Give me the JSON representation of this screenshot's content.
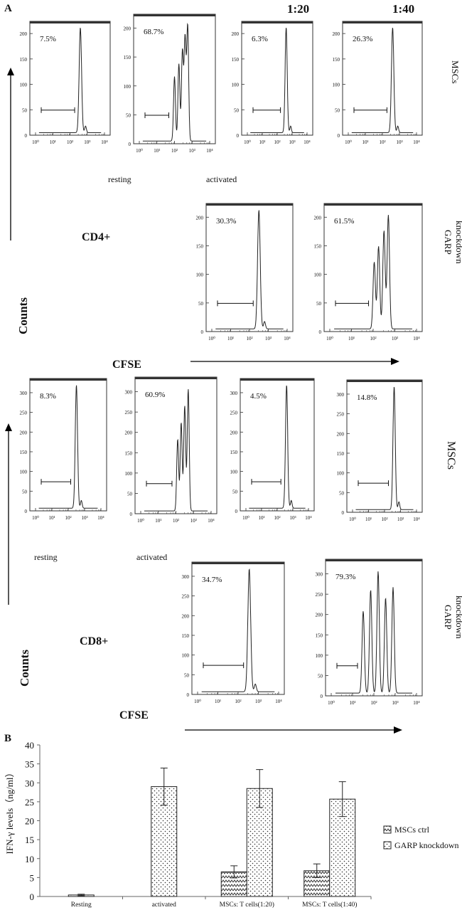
{
  "panel_labels": {
    "a": "A",
    "b": "B"
  },
  "ratio_headers": [
    "1:20",
    "1:40"
  ],
  "row_labels": {
    "mscs": "MSCs",
    "garp": [
      "GARP",
      "knockdown"
    ]
  },
  "section_labels": {
    "cd4": "CD4+",
    "cd8": "CD8+",
    "counts": "Counts",
    "cfse": "CFSE",
    "resting": "resting",
    "activated": "activated"
  },
  "chart_data": [
    {
      "type": "histogram",
      "group": "CD4+",
      "axis_label_y": "Counts",
      "axis_label_x": "CFSE",
      "x_ticks": [
        "10⁰",
        "10¹",
        "10²",
        "10³",
        "10⁴"
      ],
      "panels": [
        {
          "condition": "resting",
          "row": "MSCs",
          "percent": "7.5%",
          "yticks": [
            0,
            50,
            100,
            150,
            200
          ],
          "peaks": [
            2.6
          ]
        },
        {
          "condition": "activated",
          "row": "MSCs",
          "percent": "68.7%",
          "yticks": [
            0,
            50,
            100,
            150,
            200
          ],
          "peaks": [
            2.0,
            2.25,
            2.45,
            2.6,
            2.75
          ]
        },
        {
          "condition": "1:20",
          "row": "MSCs",
          "percent": "6.3%",
          "yticks": [
            0,
            50,
            100,
            150,
            200
          ],
          "peaks": [
            2.6
          ]
        },
        {
          "condition": "1:40",
          "row": "MSCs",
          "percent": "26.3%",
          "yticks": [
            0,
            50,
            100,
            150,
            200
          ],
          "peaks": [
            2.6
          ]
        },
        {
          "condition": "1:20",
          "row": "GARP knockdown",
          "percent": "30.3%",
          "yticks": [
            0,
            50,
            100,
            150,
            200
          ],
          "peaks": [
            2.5
          ]
        },
        {
          "condition": "1:40",
          "row": "GARP knockdown",
          "percent": "61.5%",
          "yticks": [
            0,
            50,
            100,
            150,
            200
          ],
          "peaks": [
            2.05,
            2.25,
            2.5,
            2.7
          ]
        }
      ]
    },
    {
      "type": "histogram",
      "group": "CD8+",
      "axis_label_y": "Counts",
      "axis_label_x": "CFSE",
      "x_ticks": [
        "10⁰",
        "10¹",
        "10²",
        "10³",
        "10⁴"
      ],
      "panels": [
        {
          "condition": "resting",
          "row": "MSCs",
          "percent": "8.3%",
          "yticks": [
            0,
            50,
            100,
            150,
            200,
            250,
            300
          ],
          "peaks": [
            2.5
          ]
        },
        {
          "condition": "activated",
          "row": "MSCs",
          "percent": "60.9%",
          "yticks": [
            0,
            50,
            100,
            150,
            200,
            250,
            300
          ],
          "peaks": [
            2.1,
            2.3,
            2.5,
            2.7
          ]
        },
        {
          "condition": "1:20",
          "row": "MSCs",
          "percent": "4.5%",
          "yticks": [
            0,
            50,
            100,
            150,
            200,
            250,
            300
          ],
          "peaks": [
            2.6
          ]
        },
        {
          "condition": "1:40",
          "row": "MSCs",
          "percent": "14.8%",
          "yticks": [
            0,
            50,
            100,
            150,
            200,
            250,
            300
          ],
          "peaks": [
            2.6
          ]
        },
        {
          "condition": "1:20",
          "row": "GARP knockdown",
          "percent": "34.7%",
          "yticks": [
            0,
            50,
            100,
            150,
            200,
            250,
            300
          ],
          "peaks": [
            2.55
          ]
        },
        {
          "condition": "1:40",
          "row": "GARP knockdown",
          "percent": "79.3%",
          "yticks": [
            0,
            50,
            100,
            150,
            200,
            250,
            300
          ],
          "peaks": [
            1.5,
            1.85,
            2.2,
            2.55,
            2.9
          ]
        }
      ]
    },
    {
      "type": "bar",
      "ylabel": "IFN-γ levels（ng/ml）",
      "ylim": [
        0,
        40
      ],
      "yticks": [
        0,
        5,
        10,
        15,
        20,
        25,
        30,
        35,
        40
      ],
      "categories": [
        "Resting",
        "activated",
        "MSCs: T cells(1:20)",
        "MSCs: T cells(1:40)"
      ],
      "legend_position": "right",
      "series": [
        {
          "name": "MSCs ctrl",
          "pattern": "zigzag",
          "values": [
            0.4,
            null,
            6.5,
            6.8
          ],
          "errors": [
            0.2,
            null,
            1.6,
            1.8
          ]
        },
        {
          "name": "GARP knockdown",
          "pattern": "dots",
          "values": [
            null,
            29,
            28.5,
            25.7
          ],
          "errors": [
            null,
            4.9,
            5.0,
            4.6
          ]
        }
      ],
      "single_bars": {
        "Resting": "MSCs ctrl",
        "activated": "GARP knockdown"
      }
    }
  ]
}
